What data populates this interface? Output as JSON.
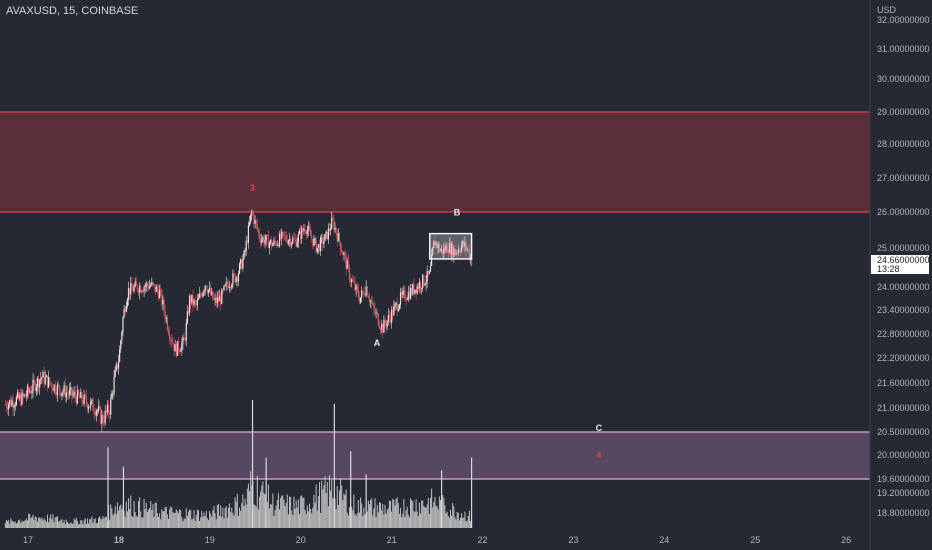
{
  "title": "AVAXUSD, 15, COINBASE",
  "colors": {
    "background": "#242933",
    "candle_up": "#f2dede",
    "candle_down": "#d4555f",
    "upper_zone_fill": "#5a2e38",
    "upper_zone_line": "#e0404a",
    "lower_zone_fill": "#564860",
    "lower_zone_line": "#e8a8dc",
    "volume": "#d8d8d8",
    "label_red": "#e0404a",
    "label_white": "#e8e8e8"
  },
  "chart_data": {
    "type": "candlestick",
    "title": "AVAXUSD, 15, COINBASE",
    "y_axis": {
      "unit_label": "USD",
      "ticks": [
        "32.00000000",
        "31.00000000",
        "30.00000000",
        "29.00000000",
        "28.00000000",
        "27.00000000",
        "26.00000000",
        "25.00000000",
        "24.00000000",
        "23.40000000",
        "22.80000000",
        "22.20000000",
        "21.60000000",
        "21.00000000",
        "20.50000000",
        "20.00000000",
        "19.60000000",
        "19.20000000",
        "18.80000000"
      ]
    },
    "x_axis": {
      "ticks": [
        "17",
        "18",
        "19",
        "20",
        "21",
        "22",
        "23",
        "24",
        "25",
        "26"
      ]
    },
    "last_price": {
      "value": "24.66000000",
      "countdown": "13:28"
    },
    "zones": [
      {
        "name": "upper-resistance-zone",
        "top": 29.0,
        "bottom": 26.0
      },
      {
        "name": "lower-support-zone",
        "top": 20.5,
        "bottom": 19.6
      }
    ],
    "consolidation_box": {
      "x_start": 21.42,
      "x_end": 21.88,
      "top": 25.4,
      "bottom": 24.72
    },
    "wave_labels": [
      {
        "text": "3",
        "x": 19.47,
        "price": 26.62,
        "color": "red"
      },
      {
        "text": "B",
        "x": 21.72,
        "price": 25.9,
        "color": "white"
      },
      {
        "text": "A",
        "x": 20.84,
        "price": 22.5,
        "color": "white"
      },
      {
        "text": "C",
        "x": 23.28,
        "price": 20.52,
        "color": "white"
      },
      {
        "text": "4",
        "x": 23.28,
        "price": 19.95,
        "color": "red"
      }
    ],
    "price_path": [
      [
        16.75,
        21.1
      ],
      [
        16.95,
        21.25
      ],
      [
        17.05,
        21.5
      ],
      [
        17.15,
        21.75
      ],
      [
        17.3,
        21.5
      ],
      [
        17.45,
        21.35
      ],
      [
        17.6,
        21.2
      ],
      [
        17.75,
        21.0
      ],
      [
        17.82,
        20.75
      ],
      [
        17.9,
        21.0
      ],
      [
        17.95,
        21.7
      ],
      [
        18.0,
        22.2
      ],
      [
        18.05,
        23.3
      ],
      [
        18.1,
        23.9
      ],
      [
        18.2,
        24.0
      ],
      [
        18.35,
        24.05
      ],
      [
        18.45,
        23.85
      ],
      [
        18.55,
        22.9
      ],
      [
        18.62,
        22.4
      ],
      [
        18.72,
        22.6
      ],
      [
        18.78,
        23.7
      ],
      [
        18.85,
        23.5
      ],
      [
        18.95,
        24.1
      ],
      [
        19.05,
        23.6
      ],
      [
        19.12,
        23.7
      ],
      [
        19.2,
        24.1
      ],
      [
        19.3,
        24.3
      ],
      [
        19.38,
        24.8
      ],
      [
        19.46,
        26.0
      ],
      [
        19.55,
        25.3
      ],
      [
        19.7,
        25.1
      ],
      [
        19.8,
        25.3
      ],
      [
        19.95,
        25.2
      ],
      [
        20.05,
        25.6
      ],
      [
        20.18,
        25.0
      ],
      [
        20.28,
        25.3
      ],
      [
        20.35,
        25.75
      ],
      [
        20.45,
        25.0
      ],
      [
        20.55,
        24.2
      ],
      [
        20.65,
        23.7
      ],
      [
        20.72,
        24.0
      ],
      [
        20.8,
        23.4
      ],
      [
        20.9,
        22.95
      ],
      [
        21.0,
        23.3
      ],
      [
        21.1,
        23.7
      ],
      [
        21.22,
        23.9
      ],
      [
        21.32,
        24.1
      ],
      [
        21.42,
        24.3
      ],
      [
        21.47,
        25.2
      ],
      [
        21.55,
        24.9
      ],
      [
        21.62,
        25.05
      ],
      [
        21.7,
        24.9
      ],
      [
        21.78,
        25.1
      ],
      [
        21.84,
        24.95
      ],
      [
        21.88,
        24.66
      ]
    ],
    "volume_profile": [
      [
        16.75,
        0.05
      ],
      [
        17.1,
        0.1
      ],
      [
        17.5,
        0.06
      ],
      [
        17.82,
        0.08
      ],
      [
        17.95,
        0.2
      ],
      [
        18.05,
        0.22
      ],
      [
        18.5,
        0.14
      ],
      [
        19.0,
        0.12
      ],
      [
        19.4,
        0.25
      ],
      [
        19.46,
        0.4
      ],
      [
        19.7,
        0.22
      ],
      [
        20.0,
        0.2
      ],
      [
        20.35,
        0.35
      ],
      [
        20.6,
        0.2
      ],
      [
        21.0,
        0.18
      ],
      [
        21.45,
        0.24
      ],
      [
        21.88,
        0.1
      ]
    ],
    "volume_spikes": [
      [
        17.88,
        0.63
      ],
      [
        18.05,
        0.48
      ],
      [
        19.47,
        1.0
      ],
      [
        19.62,
        0.55
      ],
      [
        20.37,
        0.97
      ],
      [
        20.55,
        0.6
      ],
      [
        20.72,
        0.42
      ],
      [
        21.55,
        0.45
      ],
      [
        21.88,
        0.55
      ]
    ]
  }
}
